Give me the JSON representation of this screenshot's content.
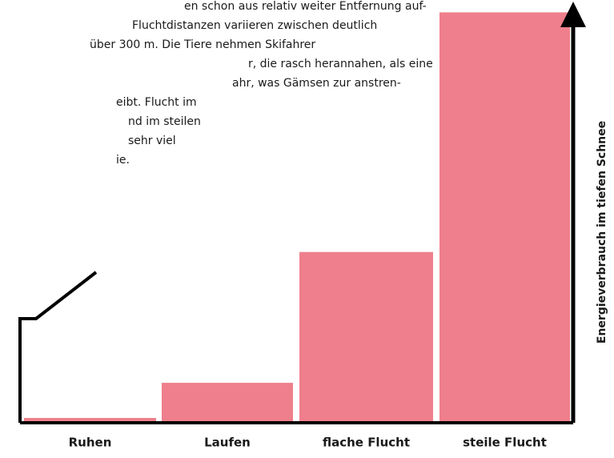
{
  "chart_data": {
    "type": "bar",
    "annotations": [
      "en schon aus relativ weiter Entfernung auf-",
      "Fluchtdistanzen variieren zwischen deutlich",
      "über 300 m. Die Tiere nehmen Skifahrer",
      "r, die rasch herannahen, als eine",
      "ahr, was Gämsen zur anstren-",
      "eibt. Flucht im",
      "nd im steilen",
      "sehr viel",
      "ie."
    ],
    "ylabel": "Energieverbrauch im tiefen Schnee",
    "categories": [
      "Ruhen",
      "Laufen",
      "flache Flucht",
      "steile Flucht"
    ],
    "values": [
      0.07,
      0.58,
      2.48,
      5.96
    ],
    "color": "#ef7f8c",
    "ylim": [
      0,
      6
    ]
  }
}
